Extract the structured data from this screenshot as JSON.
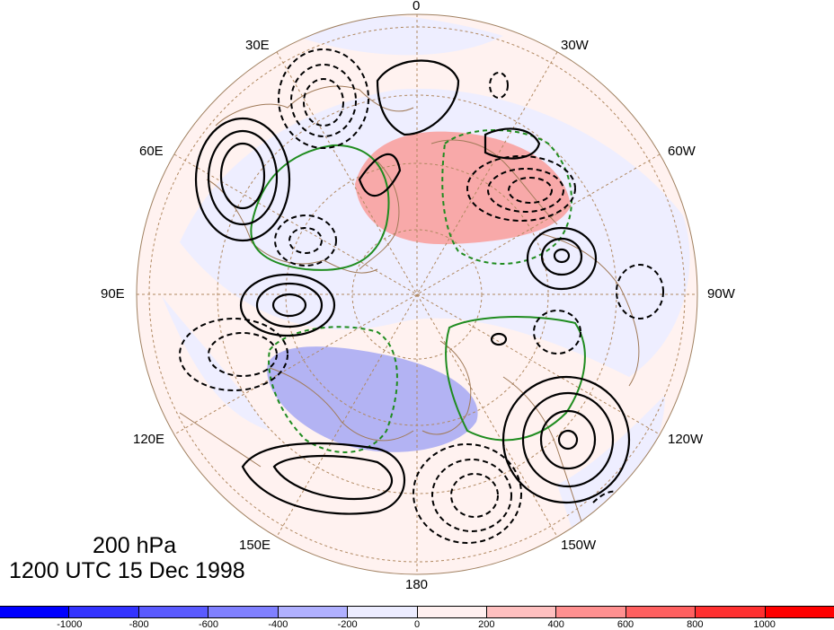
{
  "map": {
    "projection": "north-polar-stereographic",
    "longitude_labels": {
      "lon_0": "0",
      "lon_30w": "30W",
      "lon_60w": "60W",
      "lon_90w": "90W",
      "lon_120w": "120W",
      "lon_150w": "150W",
      "lon_180": "180",
      "lon_150e": "150E",
      "lon_120e": "120E",
      "lon_90e": "90E",
      "lon_60e": "60E",
      "lon_30e": "30E"
    },
    "level_title": "200 hPa",
    "time_title": "1200 UTC 15 Dec 1998",
    "contours": {
      "positive_style": "solid black",
      "negative_style": "dashed black",
      "green_style": "green solid / green dashed"
    },
    "colors": {
      "ocean_background": "#ffffff",
      "light_blue": "#eeeeff",
      "light_red": "#fff0ee",
      "medium_red": "#f8a7a7",
      "medium_blue": "#b6b6f5",
      "coastline": "#a08060",
      "graticule": "#a08060",
      "green_contour": "#1a8a1a"
    }
  },
  "colorbar": {
    "colors": [
      "#0000ff",
      "#3333ff",
      "#5a5aff",
      "#8080ff",
      "#b0b0ff",
      "#ececff",
      "#fff0f0",
      "#ffc0c0",
      "#ff9090",
      "#ff6060",
      "#ff3030",
      "#ff0000"
    ],
    "tick_labels": [
      "-1000",
      "-800",
      "-600",
      "-400",
      "-200",
      "0",
      "200",
      "400",
      "600",
      "800",
      "1000"
    ]
  }
}
